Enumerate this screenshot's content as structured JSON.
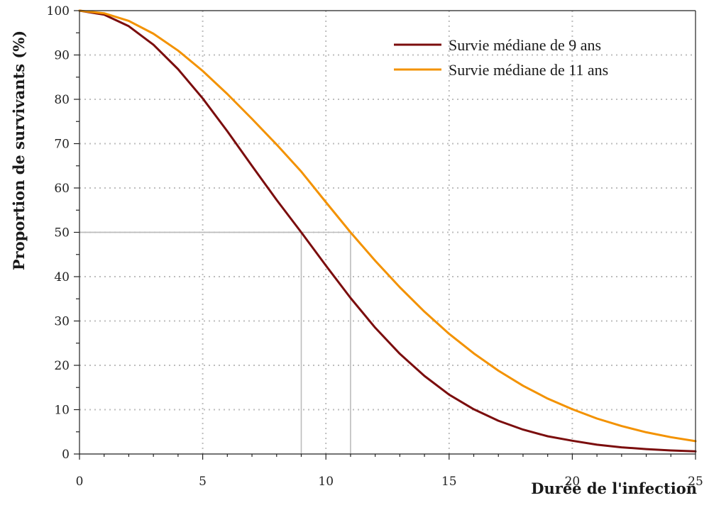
{
  "chart_data": {
    "type": "line",
    "title": "",
    "xlabel": "Durée de l'infection",
    "ylabel": "Proportion de survivants (%)",
    "xlim": [
      0,
      25
    ],
    "ylim": [
      0,
      100
    ],
    "xticks": [
      0,
      5,
      10,
      15,
      20,
      25
    ],
    "yticks": [
      0,
      10,
      20,
      30,
      40,
      50,
      60,
      70,
      80,
      90,
      100
    ],
    "grid": true,
    "legend_position": "top-right",
    "median_markers": [
      9,
      11
    ],
    "x": [
      0,
      1,
      2,
      3,
      4,
      5,
      6,
      7,
      8,
      9,
      10,
      11,
      12,
      13,
      14,
      15,
      16,
      17,
      18,
      19,
      20,
      21,
      22,
      23,
      24,
      25
    ],
    "series": [
      {
        "name": "Survie médiane de 9 ans",
        "color": "#7b0d0d",
        "values": [
          100,
          99.1,
          96.5,
          92.3,
          86.8,
          80.2,
          72.8,
          65.0,
          57.3,
          50.0,
          42.5,
          35.2,
          28.5,
          22.6,
          17.6,
          13.4,
          10.1,
          7.5,
          5.5,
          4.0,
          3.0,
          2.1,
          1.5,
          1.1,
          0.8,
          0.6
        ]
      },
      {
        "name": "Survie médiane de 11 ans",
        "color": "#f39200",
        "values": [
          100,
          99.4,
          97.7,
          94.8,
          91.0,
          86.4,
          81.2,
          75.6,
          69.8,
          63.7,
          56.8,
          50.0,
          43.6,
          37.6,
          32.1,
          27.1,
          22.7,
          18.8,
          15.4,
          12.5,
          10.1,
          8.0,
          6.3,
          4.9,
          3.8,
          2.9
        ]
      }
    ]
  }
}
